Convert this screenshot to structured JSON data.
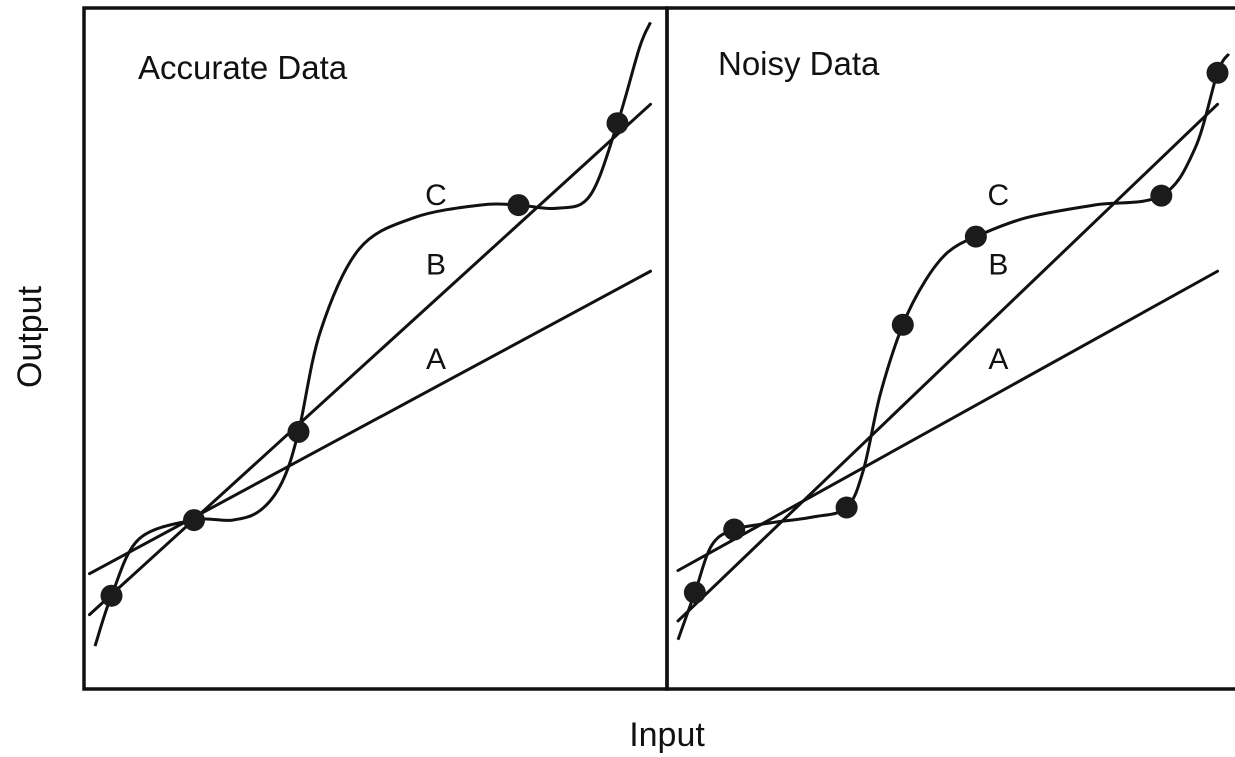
{
  "chart_data": [
    {
      "type": "scatter",
      "title": "Accurate Data",
      "xlabel": "Input",
      "ylabel": "Output",
      "grid": false,
      "xlim": [
        0,
        10
      ],
      "ylim": [
        0,
        10
      ],
      "points": [
        {
          "x": 0.3,
          "y": 1.1
        },
        {
          "x": 1.8,
          "y": 2.3
        },
        {
          "x": 3.7,
          "y": 3.7
        },
        {
          "x": 7.7,
          "y": 7.3
        },
        {
          "x": 9.5,
          "y": 8.6
        }
      ],
      "fits": [
        {
          "label": "A",
          "type": "line",
          "x": [
            -0.1,
            10.1
          ],
          "y": [
            1.45,
            6.25
          ],
          "label_pos": [
            6.2,
            4.7
          ]
        },
        {
          "label": "B",
          "type": "line",
          "x": [
            -0.1,
            10.1
          ],
          "y": [
            0.8,
            8.9
          ],
          "label_pos": [
            6.2,
            6.2
          ]
        },
        {
          "label": "C",
          "type": "curve",
          "x": [
            0.0,
            0.3,
            0.8,
            1.8,
            2.5,
            3.0,
            3.4,
            3.7,
            4.1,
            4.8,
            5.8,
            7.0,
            7.7,
            8.4,
            9.0,
            9.5,
            9.9,
            10.1
          ],
          "y": [
            0.3,
            1.1,
            2.0,
            2.3,
            2.3,
            2.45,
            2.9,
            3.7,
            5.3,
            6.6,
            7.1,
            7.3,
            7.3,
            7.25,
            7.45,
            8.6,
            9.8,
            10.2
          ],
          "label_pos": [
            6.2,
            7.3
          ]
        }
      ]
    },
    {
      "type": "scatter",
      "title": "Noisy Data",
      "xlabel": "Input",
      "ylabel": "Output",
      "grid": false,
      "xlim": [
        0,
        10
      ],
      "ylim": [
        0,
        10
      ],
      "points": [
        {
          "x": 0.3,
          "y": 1.15
        },
        {
          "x": 1.0,
          "y": 2.15
        },
        {
          "x": 3.0,
          "y": 2.5
        },
        {
          "x": 4.0,
          "y": 5.4
        },
        {
          "x": 5.3,
          "y": 6.8
        },
        {
          "x": 8.6,
          "y": 7.45
        },
        {
          "x": 9.6,
          "y": 9.4
        }
      ],
      "fits": [
        {
          "label": "A",
          "type": "line",
          "x": [
            0.0,
            9.6
          ],
          "y": [
            1.5,
            6.25
          ],
          "label_pos": [
            5.7,
            4.7
          ]
        },
        {
          "label": "B",
          "type": "line",
          "x": [
            0.0,
            9.6
          ],
          "y": [
            0.7,
            8.9
          ],
          "label_pos": [
            5.7,
            6.2
          ]
        },
        {
          "label": "C",
          "type": "curve",
          "x": [
            0.0,
            0.3,
            0.6,
            1.0,
            1.6,
            2.4,
            3.0,
            3.3,
            3.6,
            4.0,
            4.4,
            4.8,
            5.3,
            6.2,
            7.4,
            8.6,
            9.2,
            9.6,
            9.8
          ],
          "y": [
            0.4,
            1.15,
            1.9,
            2.15,
            2.25,
            2.35,
            2.5,
            3.1,
            4.3,
            5.4,
            6.1,
            6.55,
            6.8,
            7.1,
            7.3,
            7.45,
            8.2,
            9.4,
            9.7
          ],
          "label_pos": [
            5.7,
            7.3
          ]
        }
      ]
    }
  ]
}
